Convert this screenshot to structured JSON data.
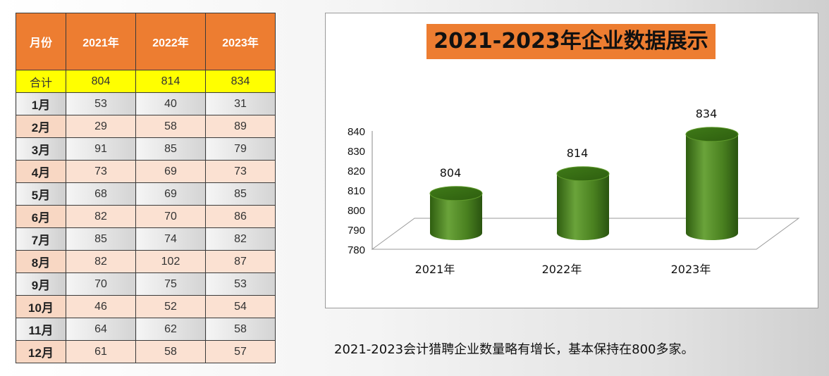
{
  "table": {
    "headers": [
      "月份",
      "2021年",
      "2022年",
      "2023年"
    ],
    "total": {
      "label": "合计",
      "values": [
        "804",
        "814",
        "834"
      ]
    },
    "rows": [
      {
        "month": "1月",
        "values": [
          "53",
          "40",
          "31"
        ]
      },
      {
        "month": "2月",
        "values": [
          "29",
          "58",
          "89"
        ]
      },
      {
        "month": "3月",
        "values": [
          "91",
          "85",
          "79"
        ]
      },
      {
        "month": "4月",
        "values": [
          "73",
          "69",
          "73"
        ]
      },
      {
        "month": "5月",
        "values": [
          "68",
          "69",
          "85"
        ]
      },
      {
        "month": "6月",
        "values": [
          "82",
          "70",
          "86"
        ]
      },
      {
        "month": "7月",
        "values": [
          "85",
          "74",
          "82"
        ]
      },
      {
        "month": "8月",
        "values": [
          "82",
          "102",
          "87"
        ]
      },
      {
        "month": "9月",
        "values": [
          "70",
          "75",
          "53"
        ]
      },
      {
        "month": "10月",
        "values": [
          "46",
          "52",
          "54"
        ]
      },
      {
        "month": "11月",
        "values": [
          "64",
          "62",
          "58"
        ]
      },
      {
        "month": "12月",
        "values": [
          "61",
          "58",
          "57"
        ]
      }
    ]
  },
  "chart_data": {
    "type": "bar",
    "title": "2021-2023年企业数据展示",
    "categories": [
      "2021年",
      "2022年",
      "2023年"
    ],
    "values": [
      804,
      814,
      834
    ],
    "ylim": [
      780,
      840
    ],
    "yticks": [
      780,
      790,
      800,
      810,
      820,
      830,
      840
    ],
    "xlabel": "",
    "ylabel": "",
    "grid": false,
    "legend": "none",
    "style": "3d-cylinder"
  },
  "colors": {
    "header": "#ed7d31",
    "total_row": "#ffff00",
    "cylinder": "#4e8a1e"
  },
  "note": "2021-2023会计猎聘企业数量略有增长，基本保持在800多家。"
}
